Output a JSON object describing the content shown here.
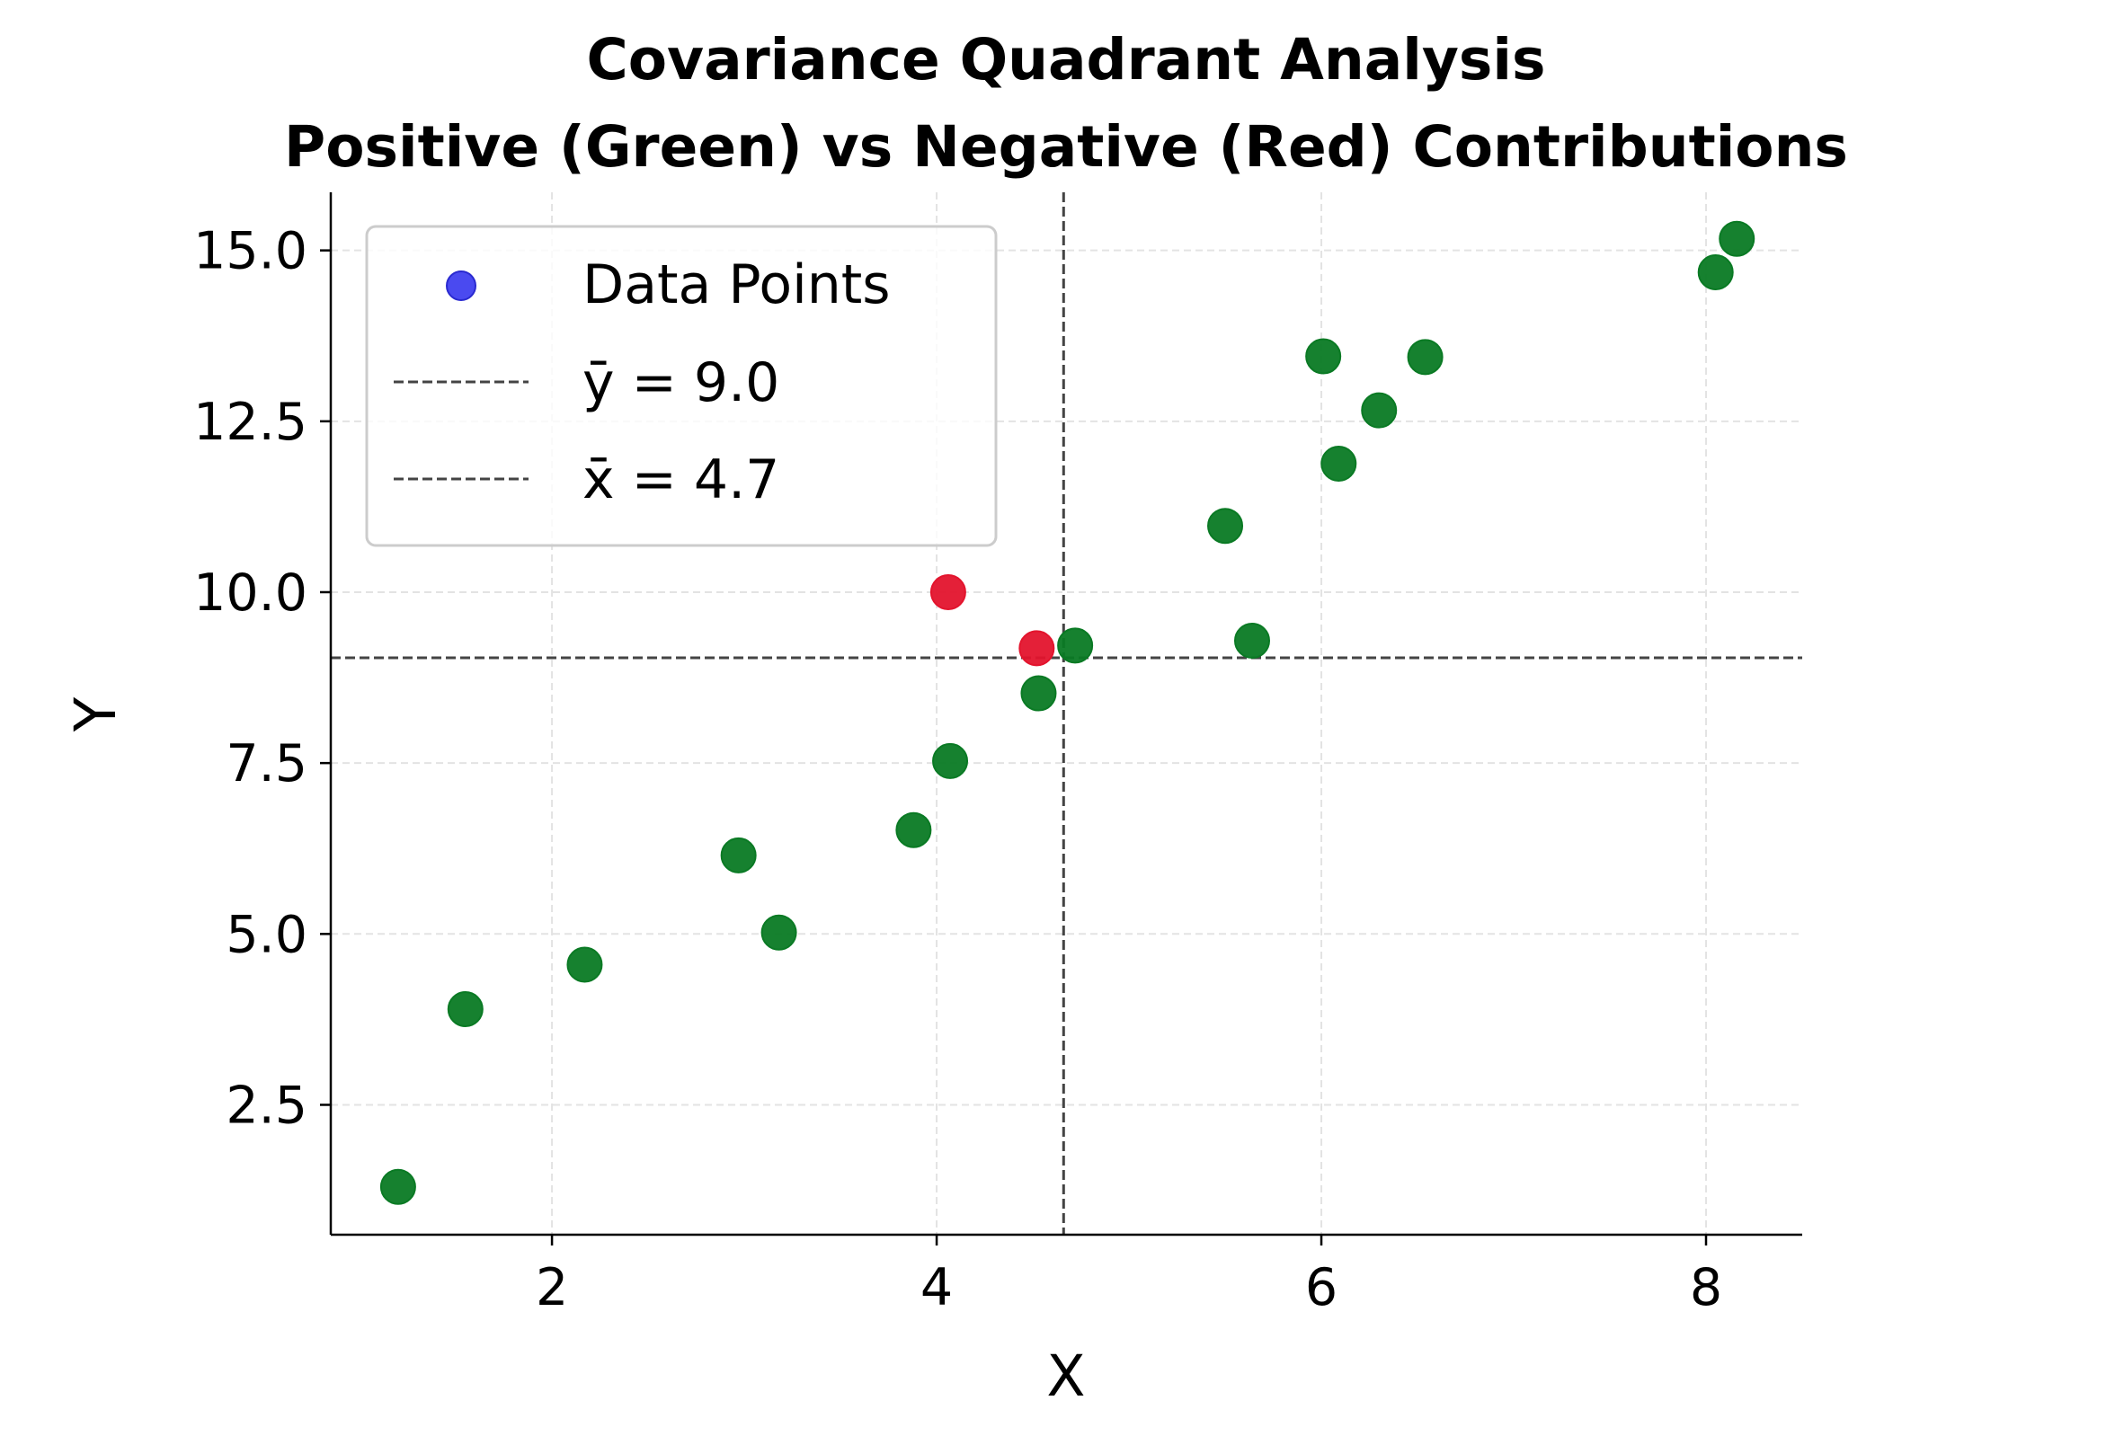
{
  "chart_data": {
    "type": "scatter",
    "title_lines": [
      "Covariance Quadrant Analysis",
      "Positive (Green) vs Negative (Red) Contributions"
    ],
    "xlabel": "X",
    "ylabel": "Y",
    "xlim": [
      0.85,
      8.5
    ],
    "ylim": [
      0.6,
      15.85
    ],
    "x_ticks": [
      2,
      4,
      6,
      8
    ],
    "y_ticks": [
      2.5,
      5.0,
      7.5,
      10.0,
      12.5,
      15.0
    ],
    "x_tick_labels": [
      "2",
      "4",
      "6",
      "8"
    ],
    "y_tick_labels": [
      "2.5",
      "5.0",
      "7.5",
      "10.0",
      "12.5",
      "15.0"
    ],
    "grid": true,
    "legend_position": "top-left",
    "mean_x": 4.66,
    "mean_y": 9.04,
    "legend": {
      "data_points": "Data Points",
      "mean_y": "ȳ = 9.0",
      "mean_x": "x̄ = 4.7"
    },
    "colors": {
      "positive": "#0a7a24",
      "negative": "#e3142d",
      "legend_marker": "#4a4af0",
      "mean_line": "#444444"
    },
    "points": [
      {
        "x": 1.2,
        "y": 1.3,
        "contribution": "positive"
      },
      {
        "x": 1.55,
        "y": 3.9,
        "contribution": "positive"
      },
      {
        "x": 2.17,
        "y": 4.55,
        "contribution": "positive"
      },
      {
        "x": 2.97,
        "y": 6.15,
        "contribution": "positive"
      },
      {
        "x": 3.18,
        "y": 5.02,
        "contribution": "positive"
      },
      {
        "x": 3.88,
        "y": 6.52,
        "contribution": "positive"
      },
      {
        "x": 4.07,
        "y": 7.53,
        "contribution": "positive"
      },
      {
        "x": 4.06,
        "y": 10.0,
        "contribution": "negative"
      },
      {
        "x": 4.53,
        "y": 8.52,
        "contribution": "positive"
      },
      {
        "x": 4.52,
        "y": 9.18,
        "contribution": "negative"
      },
      {
        "x": 4.72,
        "y": 9.22,
        "contribution": "positive"
      },
      {
        "x": 5.5,
        "y": 10.97,
        "contribution": "positive"
      },
      {
        "x": 5.64,
        "y": 9.29,
        "contribution": "positive"
      },
      {
        "x": 6.01,
        "y": 13.45,
        "contribution": "positive"
      },
      {
        "x": 6.09,
        "y": 11.88,
        "contribution": "positive"
      },
      {
        "x": 6.3,
        "y": 12.66,
        "contribution": "positive"
      },
      {
        "x": 6.54,
        "y": 13.44,
        "contribution": "positive"
      },
      {
        "x": 8.05,
        "y": 14.68,
        "contribution": "positive"
      },
      {
        "x": 8.16,
        "y": 15.17,
        "contribution": "positive"
      }
    ]
  }
}
